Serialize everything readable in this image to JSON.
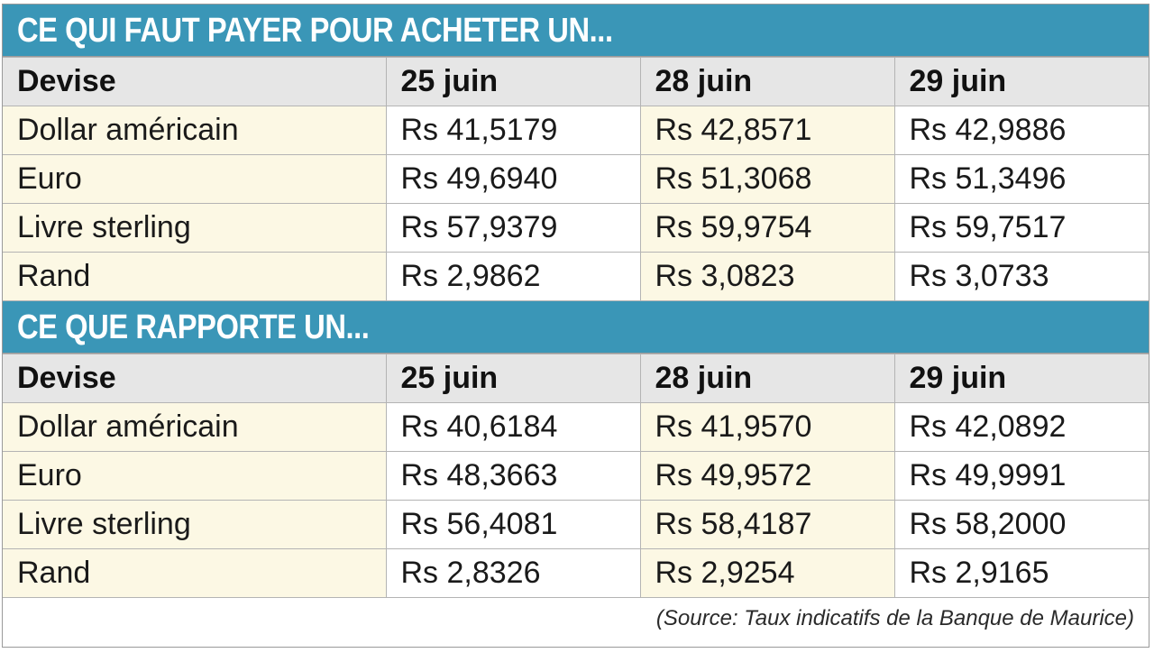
{
  "section1": {
    "title": "CE QUI FAUT PAYER POUR ACHETER UN...",
    "headers": [
      "Devise",
      "25 juin",
      "28 juin",
      "29 juin"
    ],
    "rows": [
      [
        "Dollar américain",
        "Rs 41,5179",
        "Rs 42,8571",
        "Rs 42,9886"
      ],
      [
        "Euro",
        "Rs 49,6940",
        "Rs 51,3068",
        "Rs 51,3496"
      ],
      [
        "Livre sterling",
        "Rs 57,9379",
        "Rs 59,9754",
        "Rs 59,7517"
      ],
      [
        "Rand",
        "Rs 2,9862",
        "Rs 3,0823",
        "Rs 3,0733"
      ]
    ]
  },
  "section2": {
    "title": "CE QUE RAPPORTE UN...",
    "headers": [
      "Devise",
      "25 juin",
      "28 juin",
      "29 juin"
    ],
    "rows": [
      [
        "Dollar américain",
        "Rs 40,6184",
        "Rs 41,9570",
        "Rs 42,0892"
      ],
      [
        "Euro",
        "Rs 48,3663",
        "Rs 49,9572",
        "Rs 49,9991"
      ],
      [
        "Livre sterling",
        "Rs 56,4081",
        "Rs 58,4187",
        "Rs 58,2000"
      ],
      [
        "Rand",
        "Rs 2,8326",
        "Rs 2,9254",
        "Rs 2,9165"
      ]
    ]
  },
  "source": "(Source: Taux indicatifs de la Banque de Maurice)",
  "colors": {
    "header_band": "#3a96b7",
    "column_header_bg": "#e6e6e6",
    "cream_cell_bg": "#fcf8e4"
  }
}
